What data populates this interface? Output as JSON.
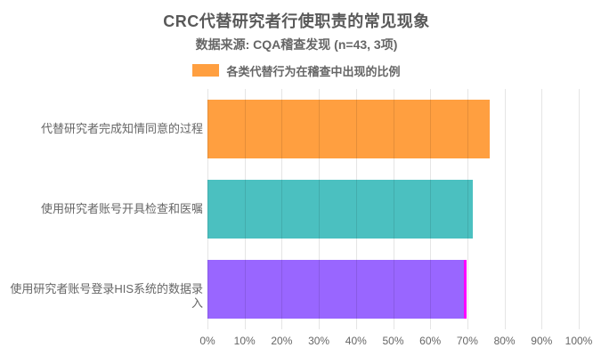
{
  "header": {
    "title": "CRC代替研究者行使职责的常见现象",
    "subtitle": "数据来源: CQA稽查发现 (n=43, 3项)"
  },
  "legend": {
    "label": "各类代替行为在稽查中出现的比例",
    "swatch_color": "#ff9f40"
  },
  "chart_data": {
    "type": "bar",
    "orientation": "horizontal",
    "title": "CRC代替研究者行使职责的常见现象",
    "subtitle": "数据来源: CQA稽查发现 (n=43, 3项)",
    "legend_entries": [
      "各类代替行为在稽查中出现的比例"
    ],
    "legend_position": "top",
    "categories": [
      "代替研究者完成知情同意的过程",
      "使用研究者账号开具检查和医嘱",
      "使用研究者账号登录HIS系统的数据录入"
    ],
    "values": [
      76,
      71.5,
      69
    ],
    "bar_colors": [
      "#ff9f40",
      "#4bc0c0",
      "#9966ff"
    ],
    "bar_border_colors": [
      "#ff9f40",
      "#4bc0c0",
      "#ff00ff"
    ],
    "xlabel": "",
    "ylabel": "",
    "xlim": [
      0,
      100
    ],
    "x_ticks": [
      "0%",
      "10%",
      "20%",
      "30%",
      "40%",
      "50%",
      "60%",
      "70%",
      "80%",
      "90%",
      "100%"
    ],
    "grid": true,
    "grid_color": "rgba(0,0,0,0.10)"
  }
}
